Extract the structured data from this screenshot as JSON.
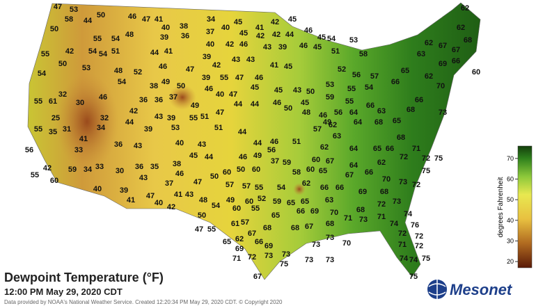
{
  "title": "Dewpoint Temperature (°F)",
  "subtitle": "12:00 PM May 29, 2020 CDT",
  "credit": "Data provided by NOAA's National Weather Service. Created 12:20:34 PM May 29, 2020 CDT. © Copyright 2020",
  "logo": "Mesonet",
  "colorbar": {
    "label": "degrees Fahrenheit",
    "range": [
      17,
      76
    ],
    "ticks": [
      20,
      30,
      40,
      50,
      60,
      70
    ]
  },
  "stations": [
    47,
    53,
    58,
    44,
    50,
    46,
    47,
    41,
    40,
    34,
    45,
    42,
    45,
    46,
    45,
    62,
    62,
    50,
    55,
    54,
    48,
    39,
    38,
    36,
    37,
    40,
    45,
    42,
    41,
    42,
    44,
    53,
    54,
    58,
    62,
    67,
    68,
    67,
    42,
    54,
    54,
    51,
    44,
    41,
    39,
    40,
    42,
    46,
    43,
    39,
    46,
    45,
    51,
    55,
    63,
    69,
    66,
    60,
    50,
    53,
    48,
    52,
    46,
    47,
    42,
    43,
    43,
    41,
    45,
    52,
    56,
    57,
    65,
    62,
    70,
    54,
    54,
    38,
    49,
    50,
    39,
    46,
    55,
    47,
    45,
    45,
    43,
    50,
    55,
    54,
    66,
    32,
    46,
    36,
    36,
    37,
    49,
    40,
    47,
    44,
    44,
    46,
    50,
    53,
    59,
    55,
    55,
    61,
    30,
    42,
    43,
    39,
    55,
    51,
    47,
    46,
    45,
    48,
    46,
    56,
    64,
    66,
    63,
    65,
    68,
    66,
    73,
    25,
    31,
    32,
    44,
    39,
    53,
    51,
    44,
    49,
    57,
    62,
    63,
    64,
    68,
    55,
    35,
    34,
    41,
    44,
    46,
    56,
    51,
    62,
    64,
    65,
    66,
    71,
    68,
    56,
    33,
    36,
    43,
    45,
    44,
    46,
    49,
    40,
    43,
    42,
    59,
    34,
    33,
    30,
    36,
    35,
    38,
    50,
    50,
    60,
    37,
    59,
    60,
    67,
    62,
    64,
    72,
    72,
    75,
    55,
    60,
    43,
    46,
    40,
    60,
    58,
    60,
    65,
    67,
    66,
    75,
    39,
    37,
    47,
    57,
    57,
    55,
    54,
    62,
    66,
    66,
    69,
    68,
    70,
    73,
    72,
    41,
    40,
    41,
    43,
    48,
    49,
    60,
    52,
    59,
    65,
    65,
    63,
    72,
    73,
    42,
    47,
    54,
    60,
    55,
    65,
    66,
    69,
    70,
    71,
    68,
    73,
    71,
    74,
    50,
    47,
    55,
    61,
    57,
    67,
    68,
    68,
    67,
    68,
    74,
    76,
    65,
    62,
    66,
    72,
    72,
    73,
    70,
    73,
    71,
    72,
    69,
    69,
    71,
    72,
    73,
    75,
    73,
    73,
    73,
    74,
    75,
    74,
    75,
    67
  ]
}
